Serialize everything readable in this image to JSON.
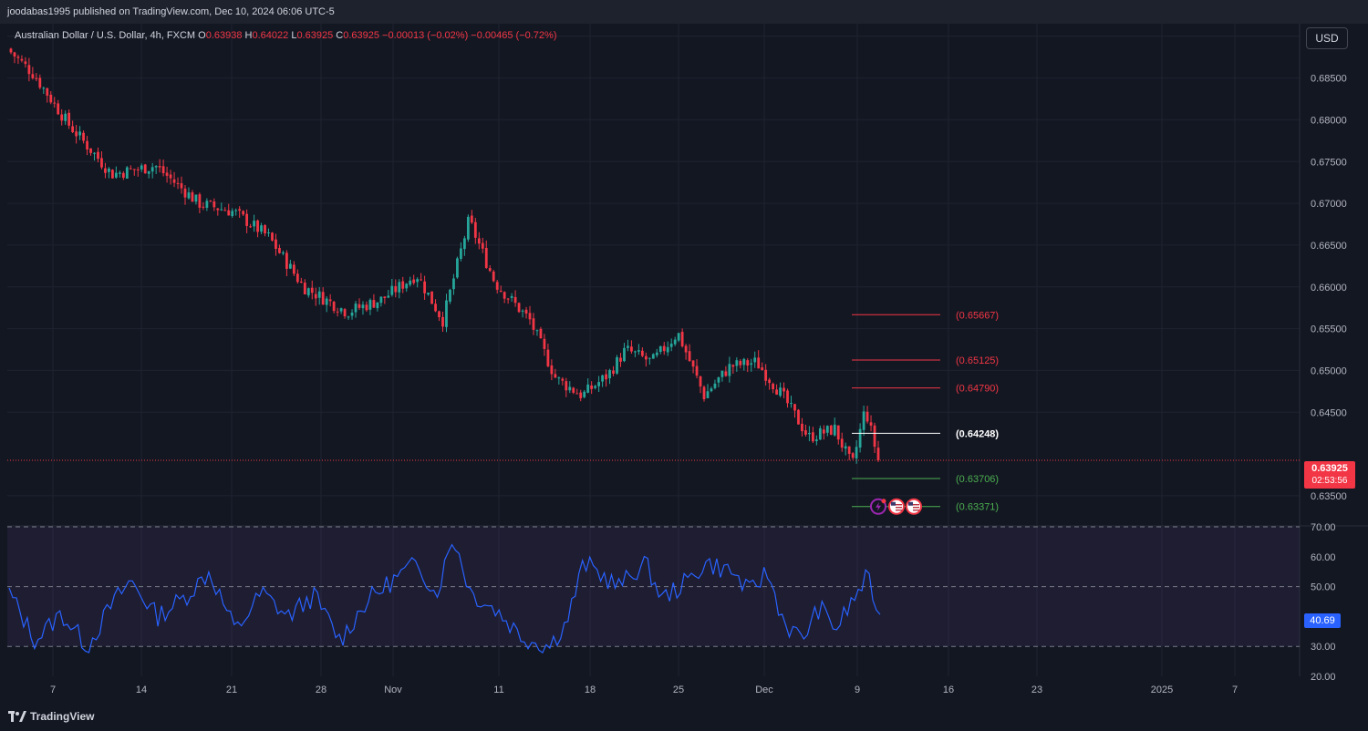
{
  "header": {
    "published": "joodabas1995 published on TradingView.com, Dec 10, 2024 06:06 UTC-5"
  },
  "symbol": {
    "name": "Australian Dollar / U.S. Dollar, 4h, FXCM",
    "o_label": "O",
    "o": "0.63938",
    "h_label": "H",
    "h": "0.64022",
    "l_label": "L",
    "l": "0.63925",
    "c_label": "C",
    "c": "0.63925",
    "change": "−0.00013 (−0.02%)",
    "change2": "−0.00465 (−0.72%)"
  },
  "currency_button": "USD",
  "current_price": {
    "value": "0.63925",
    "countdown": "02:53:56"
  },
  "rsi_value": "40.69",
  "footer": {
    "brand": "TradingView"
  },
  "colors": {
    "background": "#131722",
    "up": "#26a69a",
    "down": "#f23645",
    "rsi_line": "#2962ff",
    "level_red": "#f23645",
    "level_green": "#4caf50",
    "level_white": "#ffffff"
  },
  "chart_data": [
    {
      "type": "candlestick",
      "title": "Australian Dollar / U.S. Dollar, 4h, FXCM",
      "y_axis": {
        "min": 0.6315,
        "max": 0.6915,
        "ticks": [
          "0.69000",
          "0.68500",
          "0.68000",
          "0.67500",
          "0.67000",
          "0.66500",
          "0.66000",
          "0.65500",
          "0.65000",
          "0.64500",
          "0.63500"
        ]
      },
      "x_axis": {
        "ticks": [
          "7",
          "14",
          "21",
          "28",
          "Nov",
          "11",
          "18",
          "25",
          "Dec",
          "9",
          "16",
          "23",
          "2025",
          "7"
        ]
      },
      "trend_anchors": [
        {
          "t": 0,
          "price": 0.6885
        },
        {
          "t": 0.03,
          "price": 0.6855
        },
        {
          "t": 0.07,
          "price": 0.6795
        },
        {
          "t": 0.12,
          "price": 0.6735
        },
        {
          "t": 0.17,
          "price": 0.6745
        },
        {
          "t": 0.22,
          "price": 0.67
        },
        {
          "t": 0.26,
          "price": 0.669
        },
        {
          "t": 0.3,
          "price": 0.666
        },
        {
          "t": 0.34,
          "price": 0.66
        },
        {
          "t": 0.39,
          "price": 0.657
        },
        {
          "t": 0.43,
          "price": 0.6585
        },
        {
          "t": 0.47,
          "price": 0.6615
        },
        {
          "t": 0.5,
          "price": 0.656
        },
        {
          "t": 0.53,
          "price": 0.668
        },
        {
          "t": 0.56,
          "price": 0.6605
        },
        {
          "t": 0.6,
          "price": 0.656
        },
        {
          "t": 0.63,
          "price": 0.649
        },
        {
          "t": 0.66,
          "price": 0.647
        },
        {
          "t": 0.69,
          "price": 0.6495
        },
        {
          "t": 0.71,
          "price": 0.6525
        },
        {
          "t": 0.74,
          "price": 0.651
        },
        {
          "t": 0.77,
          "price": 0.6545
        },
        {
          "t": 0.8,
          "price": 0.647
        },
        {
          "t": 0.83,
          "price": 0.6505
        },
        {
          "t": 0.86,
          "price": 0.651
        },
        {
          "t": 0.89,
          "price": 0.647
        },
        {
          "t": 0.92,
          "price": 0.642
        },
        {
          "t": 0.95,
          "price": 0.643
        },
        {
          "t": 0.97,
          "price": 0.6385
        },
        {
          "t": 0.985,
          "price": 0.6455
        },
        {
          "t": 1,
          "price": 0.6393
        }
      ],
      "horizontal_levels": [
        {
          "label": "(0.65667)",
          "price": 0.65667,
          "color": "red"
        },
        {
          "label": "(0.65125)",
          "price": 0.65125,
          "color": "red"
        },
        {
          "label": "(0.64790)",
          "price": 0.6479,
          "color": "red"
        },
        {
          "label": "(0.64248)",
          "price": 0.64248,
          "color": "white"
        },
        {
          "label": "(0.63706)",
          "price": 0.63706,
          "color": "green"
        },
        {
          "label": "(0.63371)",
          "price": 0.63371,
          "color": "green"
        }
      ],
      "last_price": 0.63925
    },
    {
      "type": "line",
      "title": "RSI",
      "y_axis": {
        "min": 20,
        "max": 70,
        "ticks": [
          "70.00",
          "60.00",
          "50.00",
          "40.00",
          "30.00",
          "20.00"
        ]
      },
      "band": [
        30,
        70
      ],
      "anchors": [
        {
          "t": 0,
          "v": 48
        },
        {
          "t": 0.03,
          "v": 32
        },
        {
          "t": 0.06,
          "v": 41
        },
        {
          "t": 0.09,
          "v": 30
        },
        {
          "t": 0.12,
          "v": 45
        },
        {
          "t": 0.14,
          "v": 52
        },
        {
          "t": 0.17,
          "v": 40
        },
        {
          "t": 0.2,
          "v": 46
        },
        {
          "t": 0.23,
          "v": 55
        },
        {
          "t": 0.26,
          "v": 35
        },
        {
          "t": 0.29,
          "v": 48
        },
        {
          "t": 0.32,
          "v": 40
        },
        {
          "t": 0.35,
          "v": 47
        },
        {
          "t": 0.38,
          "v": 32
        },
        {
          "t": 0.41,
          "v": 45
        },
        {
          "t": 0.44,
          "v": 52
        },
        {
          "t": 0.47,
          "v": 58
        },
        {
          "t": 0.49,
          "v": 47
        },
        {
          "t": 0.51,
          "v": 67
        },
        {
          "t": 0.53,
          "v": 48
        },
        {
          "t": 0.56,
          "v": 42
        },
        {
          "t": 0.59,
          "v": 33
        },
        {
          "t": 0.62,
          "v": 30
        },
        {
          "t": 0.64,
          "v": 38
        },
        {
          "t": 0.66,
          "v": 58
        },
        {
          "t": 0.68,
          "v": 54
        },
        {
          "t": 0.7,
          "v": 50
        },
        {
          "t": 0.73,
          "v": 58
        },
        {
          "t": 0.75,
          "v": 46
        },
        {
          "t": 0.78,
          "v": 52
        },
        {
          "t": 0.8,
          "v": 58
        },
        {
          "t": 0.83,
          "v": 55
        },
        {
          "t": 0.85,
          "v": 48
        },
        {
          "t": 0.87,
          "v": 55
        },
        {
          "t": 0.89,
          "v": 38
        },
        {
          "t": 0.91,
          "v": 32
        },
        {
          "t": 0.93,
          "v": 43
        },
        {
          "t": 0.95,
          "v": 36
        },
        {
          "t": 0.97,
          "v": 46
        },
        {
          "t": 0.985,
          "v": 53
        },
        {
          "t": 1,
          "v": 40.69
        }
      ],
      "last_value": 40.69
    }
  ]
}
